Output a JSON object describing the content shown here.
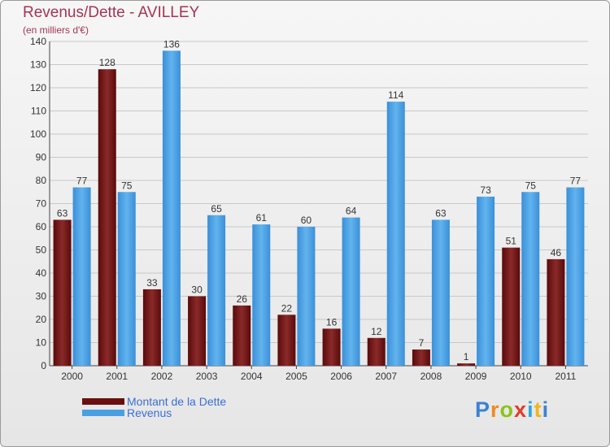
{
  "header": {
    "title": "Revenus/Dette - AVILLEY",
    "subtitle": "(en milliers d'€)"
  },
  "legend": {
    "debt_label": "Montant de la Dette",
    "revenue_label": "Revenus"
  },
  "logo": {
    "letters": [
      "P",
      "r",
      "o",
      "x",
      "i",
      "t",
      "i"
    ],
    "colors": [
      "#3a82d4",
      "#f08a1c",
      "#8ac31a",
      "#e23b2a",
      "#2da6e0",
      "#f0b51c",
      "#3a82d4"
    ]
  },
  "colors": {
    "debt": "#7a1414",
    "revenue": "#4a9fe0"
  },
  "chart_data": {
    "type": "bar",
    "title": "Revenus/Dette - AVILLEY",
    "subtitle": "(en milliers d'€)",
    "categories": [
      "2000",
      "2001",
      "2002",
      "2003",
      "2004",
      "2005",
      "2006",
      "2007",
      "2008",
      "2009",
      "2010",
      "2011"
    ],
    "series": [
      {
        "name": "Montant de la Dette",
        "values": [
          63,
          128,
          33,
          30,
          26,
          22,
          16,
          12,
          7,
          1,
          51,
          46
        ]
      },
      {
        "name": "Revenus",
        "values": [
          77,
          75,
          136,
          65,
          61,
          60,
          64,
          114,
          63,
          73,
          75,
          77
        ]
      }
    ],
    "ylim": [
      0,
      140
    ],
    "yticks": [
      0,
      10,
      20,
      30,
      40,
      50,
      60,
      70,
      80,
      90,
      100,
      110,
      120,
      130,
      140
    ],
    "grid": true,
    "legend_position": "bottom-left"
  }
}
